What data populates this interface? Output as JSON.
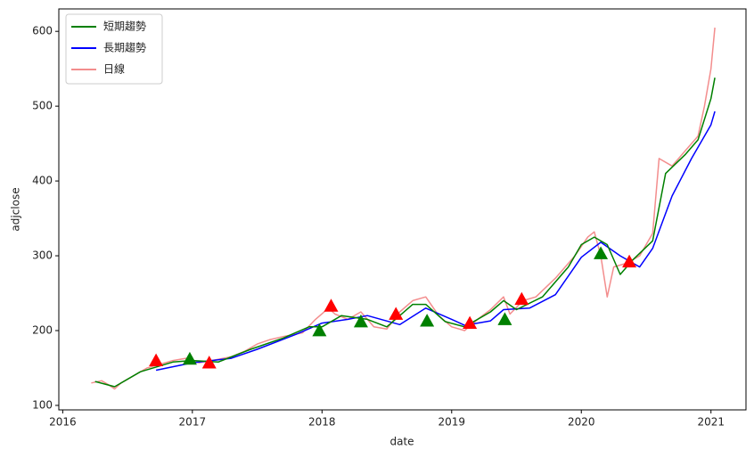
{
  "chart_data": {
    "type": "line",
    "x_label": "date",
    "y_label": "adjclose",
    "xlim": [
      2015.97,
      2021.27
    ],
    "ylim": [
      94,
      630
    ],
    "xticks": [
      2016,
      2017,
      2018,
      2019,
      2020,
      2021
    ],
    "yticks": [
      100,
      200,
      300,
      400,
      500,
      600
    ],
    "legend": "upper left",
    "series": [
      {
        "name": "短期趨勢",
        "color": "#008000",
        "width": 1.5,
        "x": [
          2016.25,
          2016.4,
          2016.6,
          2016.85,
          2017.0,
          2017.2,
          2017.45,
          2017.7,
          2017.9,
          2018.0,
          2018.15,
          2018.35,
          2018.5,
          2018.7,
          2018.8,
          2018.95,
          2019.1,
          2019.3,
          2019.4,
          2019.5,
          2019.7,
          2019.9,
          2020.0,
          2020.1,
          2020.2,
          2020.3,
          2020.4,
          2020.55,
          2020.65,
          2020.8,
          2020.9,
          2021.0,
          2021.03
        ],
        "values": [
          132,
          125,
          145,
          158,
          160,
          158,
          175,
          190,
          205,
          205,
          220,
          215,
          205,
          235,
          235,
          212,
          205,
          225,
          240,
          228,
          245,
          285,
          315,
          325,
          315,
          275,
          295,
          320,
          410,
          435,
          455,
          510,
          538
        ]
      },
      {
        "name": "長期趨勢",
        "color": "#0000ff",
        "width": 1.5,
        "x": [
          2016.72,
          2017.0,
          2017.3,
          2017.5,
          2017.8,
          2018.0,
          2018.2,
          2018.35,
          2018.6,
          2018.8,
          2019.0,
          2019.1,
          2019.3,
          2019.4,
          2019.6,
          2019.8,
          2020.0,
          2020.15,
          2020.3,
          2020.45,
          2020.55,
          2020.7,
          2020.85,
          2021.0,
          2021.03
        ],
        "values": [
          147,
          157,
          163,
          175,
          195,
          210,
          215,
          220,
          208,
          230,
          215,
          207,
          213,
          228,
          230,
          248,
          298,
          318,
          300,
          285,
          310,
          380,
          430,
          475,
          493
        ]
      },
      {
        "name": "日線",
        "color": "#f07070",
        "width": 1.5,
        "opacity": 0.8,
        "x": [
          2016.22,
          2016.3,
          2016.35,
          2016.4,
          2016.45,
          2016.55,
          2016.65,
          2016.75,
          2016.85,
          2016.95,
          2017.05,
          2017.15,
          2017.3,
          2017.4,
          2017.5,
          2017.6,
          2017.7,
          2017.85,
          2017.95,
          2018.05,
          2018.1,
          2018.2,
          2018.3,
          2018.4,
          2018.5,
          2018.6,
          2018.7,
          2018.8,
          2018.9,
          2019.0,
          2019.1,
          2019.2,
          2019.3,
          2019.4,
          2019.45,
          2019.55,
          2019.65,
          2019.8,
          2019.95,
          2020.05,
          2020.1,
          2020.15,
          2020.2,
          2020.25,
          2020.35,
          2020.45,
          2020.55,
          2020.6,
          2020.7,
          2020.8,
          2020.9,
          2020.95,
          2021.0,
          2021.03
        ],
        "values": [
          130,
          133,
          128,
          122,
          130,
          140,
          150,
          155,
          160,
          163,
          157,
          160,
          165,
          172,
          182,
          188,
          192,
          197,
          215,
          230,
          222,
          215,
          225,
          205,
          202,
          225,
          240,
          245,
          220,
          205,
          200,
          215,
          228,
          245,
          222,
          240,
          245,
          270,
          300,
          325,
          332,
          300,
          245,
          285,
          290,
          300,
          330,
          430,
          420,
          440,
          460,
          500,
          550,
          605
        ]
      }
    ],
    "markers": [
      {
        "color": "#ff0000",
        "x": [
          2016.72,
          2017.13,
          2018.07,
          2018.57,
          2019.14,
          2019.54,
          2020.37
        ],
        "values": [
          160,
          157,
          233,
          222,
          210,
          242,
          292
        ]
      },
      {
        "color": "#008000",
        "x": [
          2016.98,
          2017.98,
          2018.3,
          2018.81,
          2019.41,
          2020.15
        ],
        "values": [
          162,
          200,
          212,
          213,
          215,
          303
        ]
      }
    ]
  }
}
